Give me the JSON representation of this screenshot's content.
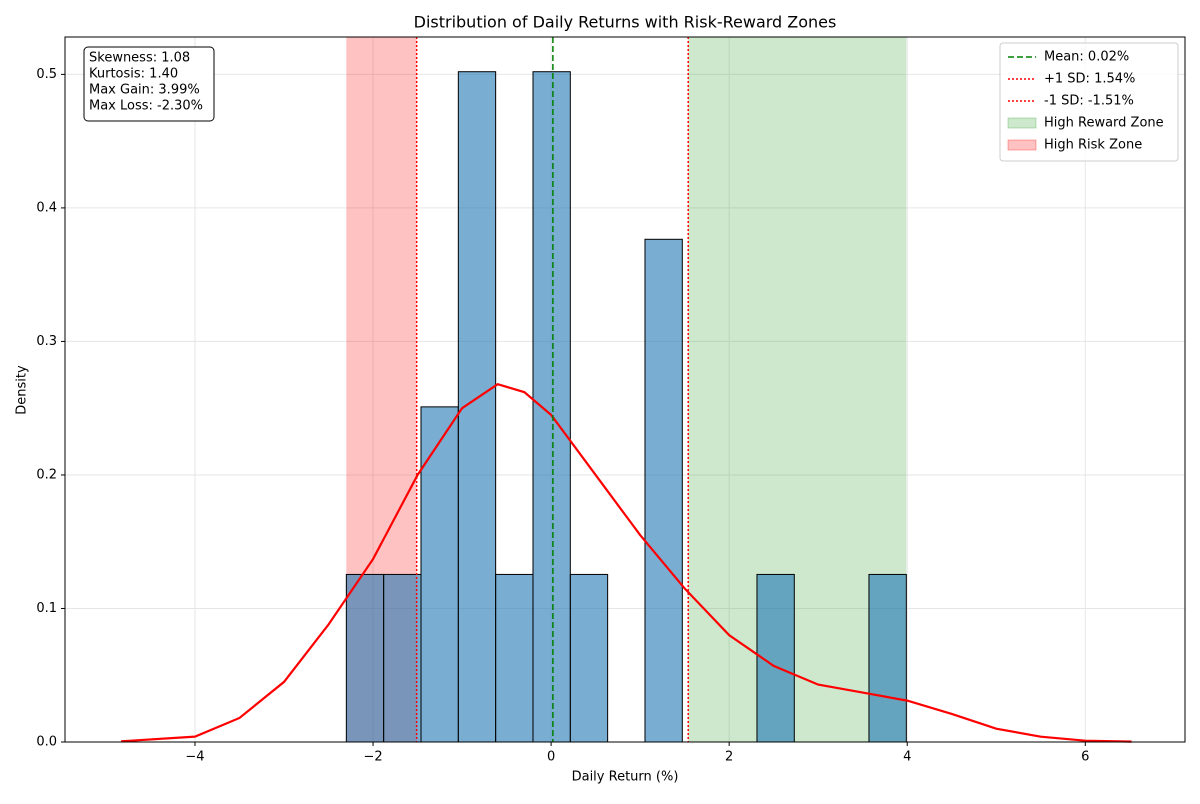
{
  "chart_data": {
    "type": "histogram",
    "title": "Distribution of Daily Returns with Risk-Reward Zones",
    "xlabel": "Daily Return (%)",
    "ylabel": "Density",
    "bins": [
      -2.3,
      -1.8807,
      -1.4614,
      -1.0421,
      -0.6228,
      -0.2035,
      0.2158,
      0.6351,
      1.0544,
      1.4737,
      1.893,
      2.3123,
      2.7316,
      3.1509,
      3.5702,
      3.99
    ],
    "values": [
      0.1255,
      0.1255,
      0.251,
      0.502,
      0.1255,
      0.502,
      0.1255,
      0,
      0.3765,
      0,
      0,
      0.1255,
      0,
      0,
      0.1255
    ],
    "color": "#1f77b4",
    "kde": {
      "color": "#ff0000",
      "x": [
        -4.83,
        -4,
        -3.5,
        -3,
        -2.5,
        -2,
        -1.5,
        -1,
        -0.6,
        -0.3,
        0,
        0.5,
        1,
        1.5,
        2,
        2.5,
        3,
        3.5,
        4,
        4.5,
        5,
        5.5,
        6,
        6.52
      ],
      "values": [
        0.0005,
        0.004,
        0.018,
        0.045,
        0.088,
        0.137,
        0.2,
        0.25,
        0.268,
        0.262,
        0.245,
        0.2,
        0.155,
        0.115,
        0.08,
        0.057,
        0.043,
        0.037,
        0.031,
        0.021,
        0.01,
        0.004,
        0.001,
        0.0003
      ]
    },
    "lines": [
      {
        "label": "Mean: 0.02%",
        "value": 0.02,
        "color": "#008000",
        "style": "dashed"
      },
      {
        "label": "+1 SD: 1.54%",
        "value": 1.54,
        "color": "#ff0000",
        "style": "dotted"
      },
      {
        "label": "-1 SD: -1.51%",
        "value": -1.51,
        "color": "#ff0000",
        "style": "dotted"
      }
    ],
    "spans": [
      {
        "label": "High Reward Zone",
        "range": [
          1.54,
          3.99
        ],
        "color": "#2ca02c"
      },
      {
        "label": "High Risk Zone",
        "range": [
          -2.3,
          -1.51
        ],
        "color": "#ff0000"
      }
    ],
    "stats_box": [
      "Skewness: 1.08",
      "Kurtosis: 1.40",
      "Max Gain: 3.99%",
      "Max Loss: -2.30%"
    ],
    "xlim": [
      -5.46,
      7.12
    ],
    "xticks": [
      {
        "value": -4,
        "label": "−4"
      },
      {
        "value": -2,
        "label": "−2"
      },
      0,
      2,
      4,
      6
    ],
    "ylim": [
      0,
      0.528
    ],
    "yticks": [
      {
        "value": 0,
        "label": "0.0"
      },
      0.1,
      0.2,
      0.3,
      0.4,
      0.5
    ],
    "grid": true,
    "legend": "upper right"
  }
}
